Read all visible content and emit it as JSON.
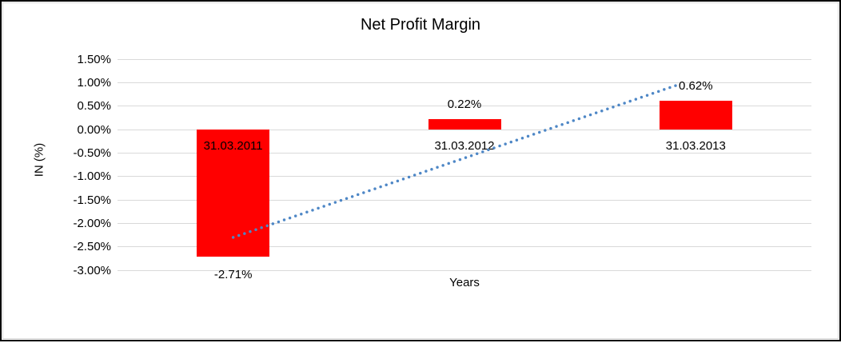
{
  "chart_data": {
    "type": "bar",
    "title": "Net Profit Margin",
    "xlabel": "Years",
    "ylabel": "IN (%)",
    "categories": [
      "31.03.2011",
      "31.03.2012",
      "31.03.2013"
    ],
    "values": [
      -2.71,
      0.22,
      0.62
    ],
    "data_labels": [
      "-2.71%",
      "0.22%",
      "0.62%"
    ],
    "ytick_values": [
      1.5,
      1.0,
      0.5,
      0.0,
      -0.5,
      -1.0,
      -1.5,
      -2.0,
      -2.5,
      -3.0
    ],
    "ytick_labels": [
      "1.50%",
      "1.00%",
      "0.50%",
      "0.00%",
      "-0.50%",
      "-1.00%",
      "-1.50%",
      "-2.00%",
      "-2.50%",
      "-3.00%"
    ],
    "ylim": [
      -3.0,
      1.5
    ],
    "grid": true,
    "legend": "none",
    "bar_color": "#FF0000",
    "grid_color": "#D9D9D9",
    "text_color": "#000000",
    "trendline": {
      "type": "linear",
      "style": "dotted",
      "color": "#4E87C6",
      "start_value": -2.3,
      "end_value": 0.95
    }
  }
}
